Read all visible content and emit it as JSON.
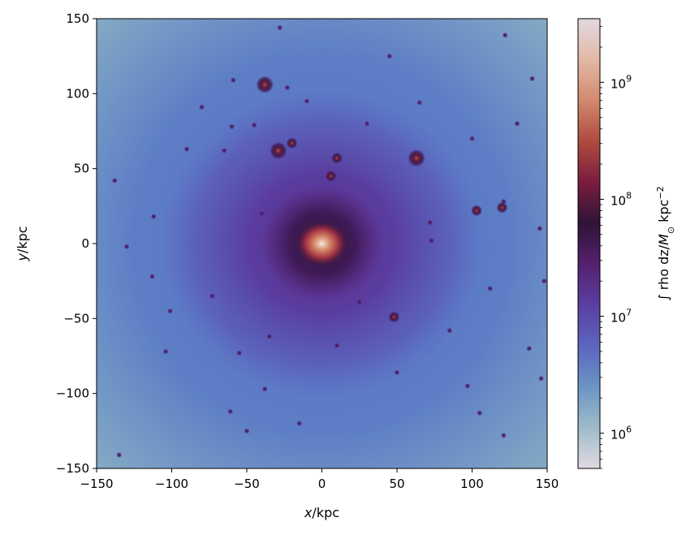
{
  "chart_data": {
    "type": "heatmap",
    "title": "",
    "xlabel": {
      "var": "x",
      "unit": "/kpc"
    },
    "ylabel": {
      "var": "y",
      "unit": "/kpc"
    },
    "xlim": [
      -150,
      150
    ],
    "ylim": [
      -150,
      150
    ],
    "xticks": [
      -150,
      -100,
      -50,
      0,
      50,
      100,
      150
    ],
    "yticks": [
      -150,
      -100,
      -50,
      0,
      50,
      100,
      150
    ],
    "xtick_labels": [
      "−150",
      "−100",
      "−50",
      "0",
      "50",
      "100",
      "150"
    ],
    "ytick_labels": [
      "−150",
      "−100",
      "−50",
      "0",
      "50",
      "100",
      "150"
    ],
    "colorbar": {
      "label_prefix": "∫ rho dz/",
      "label_unit_main": "M",
      "label_unit_sub": "⊙",
      "label_unit_tail": " kpc",
      "label_unit_exp": "−2",
      "scale": "log",
      "range": [
        500000,
        3500000000
      ],
      "colormap": "twilight_shifted (lower half)",
      "colormap_stops": [
        "#e2d9e2",
        "#9ebbc9",
        "#6a95c4",
        "#5c65c0",
        "#5a3ea3",
        "#55216f",
        "#2f1436",
        "#7a1d3f",
        "#b04a3f",
        "#d2896d",
        "#e3b9a6",
        "#e2d9e2"
      ],
      "major_ticks": [
        1000000,
        10000000,
        100000000,
        1000000000
      ],
      "major_tick_labels": [
        {
          "base": "10",
          "exp": "6"
        },
        {
          "base": "10",
          "exp": "7"
        },
        {
          "base": "10",
          "exp": "8"
        },
        {
          "base": "10",
          "exp": "9"
        }
      ]
    },
    "image_description": "Projected dark matter density of a galaxy halo: bright central core at origin surrounded by a purple halo and many subhalo clumps on a blue background.",
    "core": {
      "x": 0,
      "y": 0,
      "value": 3000000000
    },
    "subhalos": [
      {
        "x": -38,
        "y": 106,
        "s": 3
      },
      {
        "x": -29,
        "y": 62,
        "s": 3
      },
      {
        "x": -20,
        "y": 67,
        "s": 2
      },
      {
        "x": 63,
        "y": 57,
        "s": 3
      },
      {
        "x": 10,
        "y": 57,
        "s": 2
      },
      {
        "x": 6,
        "y": 45,
        "s": 2
      },
      {
        "x": 103,
        "y": 22,
        "s": 2
      },
      {
        "x": 120,
        "y": 24,
        "s": 2
      },
      {
        "x": 121,
        "y": 28,
        "s": 1
      },
      {
        "x": 72,
        "y": 14,
        "s": 1
      },
      {
        "x": 73,
        "y": 2,
        "s": 1
      },
      {
        "x": -28,
        "y": 144,
        "s": 1
      },
      {
        "x": -59,
        "y": 109,
        "s": 1
      },
      {
        "x": -23,
        "y": 104,
        "s": 1
      },
      {
        "x": -138,
        "y": 42,
        "s": 1
      },
      {
        "x": -113,
        "y": -22,
        "s": 1
      },
      {
        "x": -101,
        "y": -45,
        "s": 1
      },
      {
        "x": -73,
        "y": -35,
        "s": 1
      },
      {
        "x": -55,
        "y": -73,
        "s": 1
      },
      {
        "x": -38,
        "y": -97,
        "s": 1
      },
      {
        "x": -61,
        "y": -112,
        "s": 1
      },
      {
        "x": -50,
        "y": -125,
        "s": 1
      },
      {
        "x": 48,
        "y": -49,
        "s": 2
      },
      {
        "x": 25,
        "y": -39,
        "s": 1
      },
      {
        "x": 85,
        "y": -58,
        "s": 1
      },
      {
        "x": 50,
        "y": -86,
        "s": 1
      },
      {
        "x": 97,
        "y": -95,
        "s": 1
      },
      {
        "x": 105,
        "y": -113,
        "s": 1
      },
      {
        "x": 121,
        "y": -128,
        "s": 1
      },
      {
        "x": -135,
        "y": -141,
        "s": 1
      },
      {
        "x": -104,
        "y": -72,
        "s": 1
      },
      {
        "x": -130,
        "y": -2,
        "s": 1
      },
      {
        "x": -112,
        "y": 18,
        "s": 1
      },
      {
        "x": -90,
        "y": 63,
        "s": 1
      },
      {
        "x": -60,
        "y": 78,
        "s": 1
      },
      {
        "x": -45,
        "y": 79,
        "s": 1
      },
      {
        "x": -65,
        "y": 62,
        "s": 1
      },
      {
        "x": -40,
        "y": 20,
        "s": 1
      },
      {
        "x": 45,
        "y": 125,
        "s": 1
      },
      {
        "x": 65,
        "y": 94,
        "s": 1
      },
      {
        "x": 122,
        "y": 139,
        "s": 1
      },
      {
        "x": 140,
        "y": 110,
        "s": 1
      },
      {
        "x": 100,
        "y": 70,
        "s": 1
      },
      {
        "x": 130,
        "y": 80,
        "s": 1
      },
      {
        "x": 145,
        "y": 10,
        "s": 1
      },
      {
        "x": 112,
        "y": -30,
        "s": 1
      },
      {
        "x": 138,
        "y": -70,
        "s": 1
      },
      {
        "x": 146,
        "y": -90,
        "s": 1
      },
      {
        "x": -15,
        "y": -120,
        "s": 1
      },
      {
        "x": 10,
        "y": -68,
        "s": 1
      },
      {
        "x": -35,
        "y": -62,
        "s": 1
      },
      {
        "x": 30,
        "y": 80,
        "s": 1
      },
      {
        "x": -10,
        "y": 95,
        "s": 1
      },
      {
        "x": -80,
        "y": 91,
        "s": 1
      },
      {
        "x": 148,
        "y": -25,
        "s": 1
      }
    ]
  }
}
